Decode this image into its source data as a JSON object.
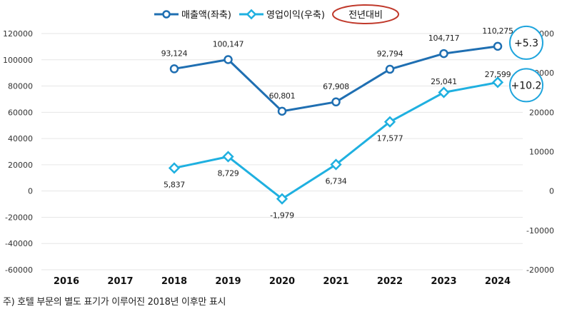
{
  "colors": {
    "revenue": "#1f6fb2",
    "profit": "#1fb0e0",
    "yoy_ellipse": "#c0392b",
    "badge_ring": "#1fa5dd"
  },
  "chart_data": {
    "type": "line",
    "categories": [
      "2016",
      "2017",
      "2018",
      "2019",
      "2020",
      "2021",
      "2022",
      "2023",
      "2024"
    ],
    "series": [
      {
        "name": "매출액(좌축)",
        "axis": "left",
        "values": [
          null,
          null,
          93124,
          100147,
          60801,
          67908,
          92794,
          104717,
          110275
        ],
        "labels": [
          "",
          "",
          "93,124",
          "100,147",
          "60,801",
          "67,908",
          "92,794",
          "104,717",
          "110,275"
        ]
      },
      {
        "name": "영업이익(우축)",
        "axis": "right",
        "values": [
          null,
          null,
          5837,
          8729,
          -1979,
          6734,
          17577,
          25041,
          27599
        ],
        "labels": [
          "",
          "",
          "5,837",
          "8,729",
          "-1,979",
          "6,734",
          "17,577",
          "25,041",
          "27,599"
        ]
      }
    ],
    "y_left": {
      "min": -60000,
      "max": 120000,
      "ticks": [
        "-60000",
        "-40000",
        "-20000",
        "0",
        "20000",
        "40000",
        "60000",
        "80000",
        "100000",
        "120000"
      ]
    },
    "y_right": {
      "min": -20000,
      "max": 40000,
      "ticks": [
        "-20000",
        "-10000",
        "0",
        "10000",
        "20000",
        "30000",
        "40000"
      ]
    },
    "legend": {
      "position": "top-center",
      "extra_label": "전년대비"
    },
    "badges": [
      {
        "series": "매출액(좌축)",
        "text": "+5.3"
      },
      {
        "series": "영업이익(우축)",
        "text": "+10.2"
      }
    ]
  },
  "note": "주) 호텔 부문의 별도 표기가 이루어진 2018년 이후만 표시"
}
